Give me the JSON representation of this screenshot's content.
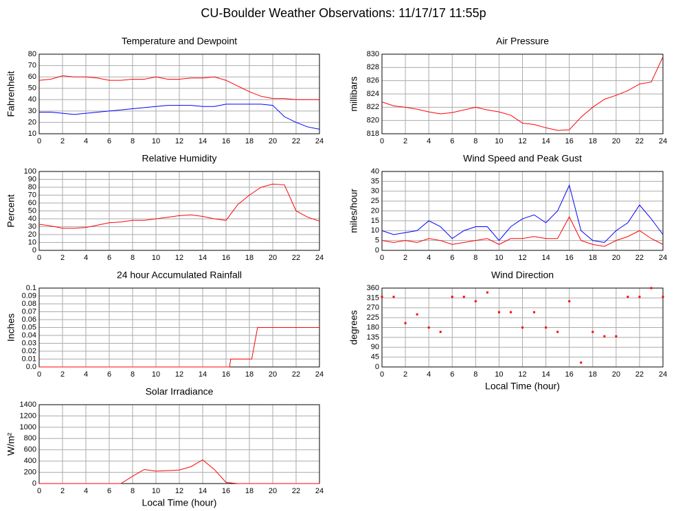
{
  "title": "CU-Boulder Weather Observations: 11/17/17 11:55p",
  "chart_data": [
    {
      "type": "line",
      "title": "Temperature and Dewpoint",
      "ylabel": "Fahrenheit",
      "x": [
        0,
        1,
        2,
        3,
        4,
        5,
        6,
        7,
        8,
        9,
        10,
        11,
        12,
        13,
        14,
        15,
        16,
        17,
        18,
        19,
        20,
        21,
        22,
        23,
        24
      ],
      "series": [
        {
          "color": "#ff0000",
          "values": [
            57,
            58,
            61,
            60,
            60,
            59,
            57,
            57,
            58,
            58,
            60,
            58,
            58,
            59,
            59,
            60,
            57,
            52,
            47,
            43,
            41,
            41,
            40,
            40,
            40
          ]
        },
        {
          "color": "#0000ff",
          "values": [
            29,
            29,
            28,
            27,
            28,
            29,
            30,
            31,
            32,
            33,
            34,
            35,
            35,
            35,
            34,
            34,
            36,
            36,
            36,
            36,
            35,
            25,
            20,
            16,
            14
          ]
        }
      ],
      "xlim": [
        0,
        24
      ],
      "xticks": [
        0,
        2,
        4,
        6,
        8,
        10,
        12,
        14,
        16,
        18,
        20,
        22,
        24
      ],
      "ylim": [
        10,
        80
      ],
      "yticks": [
        10,
        20,
        30,
        40,
        50,
        60,
        70,
        80
      ],
      "grid": true
    },
    {
      "type": "line",
      "title": "Air Pressure",
      "ylabel": "millibars",
      "x": [
        0,
        1,
        2,
        3,
        4,
        5,
        6,
        7,
        8,
        9,
        10,
        11,
        12,
        13,
        14,
        15,
        16,
        17,
        18,
        19,
        20,
        21,
        22,
        23,
        24
      ],
      "series": [
        {
          "color": "#ff0000",
          "values": [
            822.8,
            822.2,
            822.0,
            821.7,
            821.3,
            821.0,
            821.2,
            821.6,
            822.0,
            821.6,
            821.3,
            820.8,
            819.6,
            819.4,
            818.9,
            818.5,
            818.6,
            820.5,
            822.0,
            823.2,
            823.8,
            824.5,
            825.5,
            825.8,
            829.6
          ]
        }
      ],
      "xlim": [
        0,
        24
      ],
      "xticks": [
        0,
        2,
        4,
        6,
        8,
        10,
        12,
        14,
        16,
        18,
        20,
        22,
        24
      ],
      "ylim": [
        818,
        830
      ],
      "yticks": [
        818,
        820,
        822,
        824,
        826,
        828,
        830
      ],
      "grid": true
    },
    {
      "type": "line",
      "title": "Relative Humidity",
      "ylabel": "Percent",
      "x": [
        0,
        1,
        2,
        3,
        4,
        5,
        6,
        7,
        8,
        9,
        10,
        11,
        12,
        13,
        14,
        15,
        16,
        17,
        18,
        19,
        20,
        21,
        22,
        23,
        24
      ],
      "series": [
        {
          "color": "#ff0000",
          "values": [
            33,
            31,
            28,
            28,
            29,
            32,
            35,
            36,
            38,
            38,
            40,
            42,
            44,
            45,
            43,
            40,
            38,
            58,
            70,
            80,
            84,
            83,
            50,
            42,
            37
          ]
        }
      ],
      "xlim": [
        0,
        24
      ],
      "xticks": [
        0,
        2,
        4,
        6,
        8,
        10,
        12,
        14,
        16,
        18,
        20,
        22,
        24
      ],
      "ylim": [
        0,
        100
      ],
      "yticks": [
        0,
        10,
        20,
        30,
        40,
        50,
        60,
        70,
        80,
        90,
        100
      ],
      "grid": true
    },
    {
      "type": "line",
      "title": "Wind Speed and Peak Gust",
      "ylabel": "miles/hour",
      "x": [
        0,
        1,
        2,
        3,
        4,
        5,
        6,
        7,
        8,
        9,
        10,
        11,
        12,
        13,
        14,
        15,
        16,
        17,
        18,
        19,
        20,
        21,
        22,
        23,
        24
      ],
      "series": [
        {
          "color": "#0000ff",
          "values": [
            10,
            8,
            9,
            10,
            15,
            12,
            6,
            10,
            12,
            12,
            5,
            12,
            16,
            18,
            14,
            20,
            33,
            10,
            5,
            4,
            10,
            14,
            23,
            16,
            8
          ]
        },
        {
          "color": "#ff0000",
          "values": [
            5,
            4,
            5,
            4,
            6,
            5,
            3,
            4,
            5,
            6,
            3,
            6,
            6,
            7,
            6,
            6,
            17,
            5,
            3,
            2,
            5,
            7,
            10,
            6,
            3
          ]
        }
      ],
      "xlim": [
        0,
        24
      ],
      "xticks": [
        0,
        2,
        4,
        6,
        8,
        10,
        12,
        14,
        16,
        18,
        20,
        22,
        24
      ],
      "ylim": [
        0,
        40
      ],
      "yticks": [
        0,
        5,
        10,
        15,
        20,
        25,
        30,
        35,
        40
      ],
      "grid": true
    },
    {
      "type": "line",
      "title": "24 hour Accumulated Rainfall",
      "ylabel": "Inches",
      "x": [
        0,
        16.3,
        16.4,
        18.2,
        18.7,
        24
      ],
      "series": [
        {
          "color": "#ff0000",
          "values": [
            0,
            0,
            0.01,
            0.01,
            0.05,
            0.05
          ]
        }
      ],
      "xlim": [
        0,
        24
      ],
      "xticks": [
        0,
        2,
        4,
        6,
        8,
        10,
        12,
        14,
        16,
        18,
        20,
        22,
        24
      ],
      "ylim": [
        0,
        0.1
      ],
      "yticks": [
        {
          "value": 0,
          "label": "0.0"
        },
        0.01,
        0.02,
        0.03,
        0.04,
        0.05,
        0.06,
        0.07,
        0.08,
        0.09,
        0.1
      ],
      "grid": true
    },
    {
      "type": "scatter",
      "title": "Wind Direction",
      "ylabel": "degrees",
      "xlabel": "Local Time (hour)",
      "x": [
        0,
        1,
        2,
        3,
        4,
        5,
        6,
        7,
        8,
        9,
        10,
        11,
        12,
        13,
        14,
        15,
        16,
        17,
        18,
        19,
        20,
        21,
        22,
        23,
        24
      ],
      "series": [
        {
          "color": "#ff0000",
          "values": [
            320,
            320,
            200,
            240,
            180,
            160,
            320,
            320,
            300,
            340,
            250,
            250,
            180,
            250,
            180,
            160,
            300,
            20,
            160,
            140,
            140,
            320,
            320,
            360,
            320
          ]
        }
      ],
      "xlim": [
        0,
        24
      ],
      "xticks": [
        0,
        2,
        4,
        6,
        8,
        10,
        12,
        14,
        16,
        18,
        20,
        22,
        24
      ],
      "ylim": [
        0,
        360
      ],
      "yticks": [
        0,
        45,
        90,
        135,
        180,
        225,
        270,
        315,
        360
      ],
      "grid": true
    },
    {
      "type": "line",
      "title": "Solar Irradiance",
      "ylabel": "W/m²",
      "xlabel": "Local Time (hour)",
      "x": [
        0,
        1,
        2,
        3,
        4,
        5,
        6,
        7,
        8,
        9,
        10,
        11,
        12,
        13,
        14,
        15,
        16,
        17,
        18,
        19,
        20,
        21,
        22,
        23,
        24
      ],
      "series": [
        {
          "color": "#ff0000",
          "values": [
            0,
            0,
            0,
            0,
            0,
            0,
            0,
            0,
            130,
            250,
            220,
            230,
            240,
            300,
            420,
            250,
            20,
            0,
            0,
            0,
            0,
            0,
            0,
            0,
            0
          ]
        }
      ],
      "xlim": [
        0,
        24
      ],
      "xticks": [
        0,
        2,
        4,
        6,
        8,
        10,
        12,
        14,
        16,
        18,
        20,
        22,
        24
      ],
      "ylim": [
        0,
        1400
      ],
      "yticks": [
        0,
        200,
        400,
        600,
        800,
        1000,
        1200,
        1400
      ],
      "grid": true
    }
  ]
}
